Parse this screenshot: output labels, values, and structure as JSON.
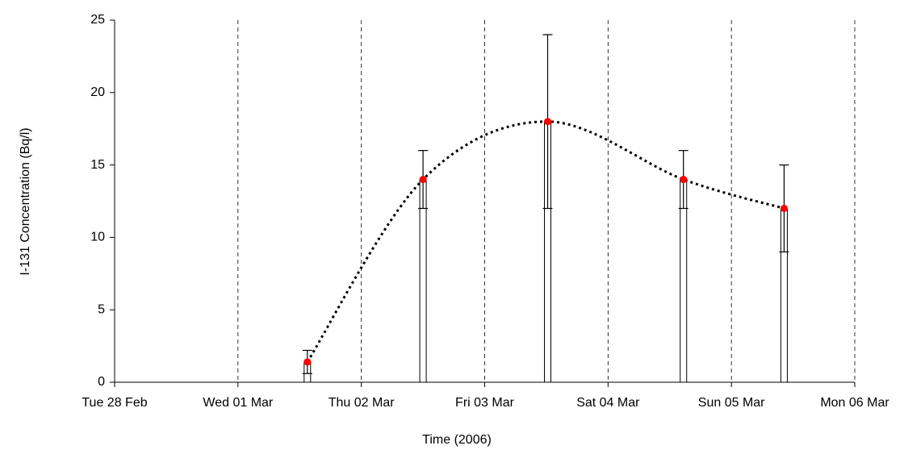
{
  "chart_data": {
    "type": "scatter",
    "x_label": "Time (2006)",
    "y_label": "I-131 Concentration (Bq/l)",
    "x": [
      "2006-03-01T13:30",
      "2006-03-02T12:00",
      "2006-03-03T12:15",
      "2006-03-04T14:40",
      "2006-03-05T10:15"
    ],
    "series": [
      {
        "color": "#ff0000",
        "values": [
          1.4,
          14,
          18,
          14,
          12
        ],
        "errors": [
          0.8,
          2,
          6,
          2,
          3
        ]
      }
    ],
    "xlim": [
      "2006-02-28",
      "2006-03-06"
    ],
    "xticks": [
      {
        "value": "2006-02-28",
        "label": "Tue 28 Feb"
      },
      {
        "value": "2006-03-01",
        "label": "Wed 01 Mar"
      },
      {
        "value": "2006-03-02",
        "label": "Thu 02 Mar"
      },
      {
        "value": "2006-03-03",
        "label": "Fri 03 Mar"
      },
      {
        "value": "2006-03-04",
        "label": "Sat 04 Mar"
      },
      {
        "value": "2006-03-05",
        "label": "Sun 05 Mar"
      },
      {
        "value": "2006-03-06",
        "label": "Mon 06 Mar"
      }
    ],
    "ylim": [
      0,
      25
    ],
    "yticks": [
      0,
      5,
      10,
      15,
      20,
      25
    ],
    "grid": true
  }
}
